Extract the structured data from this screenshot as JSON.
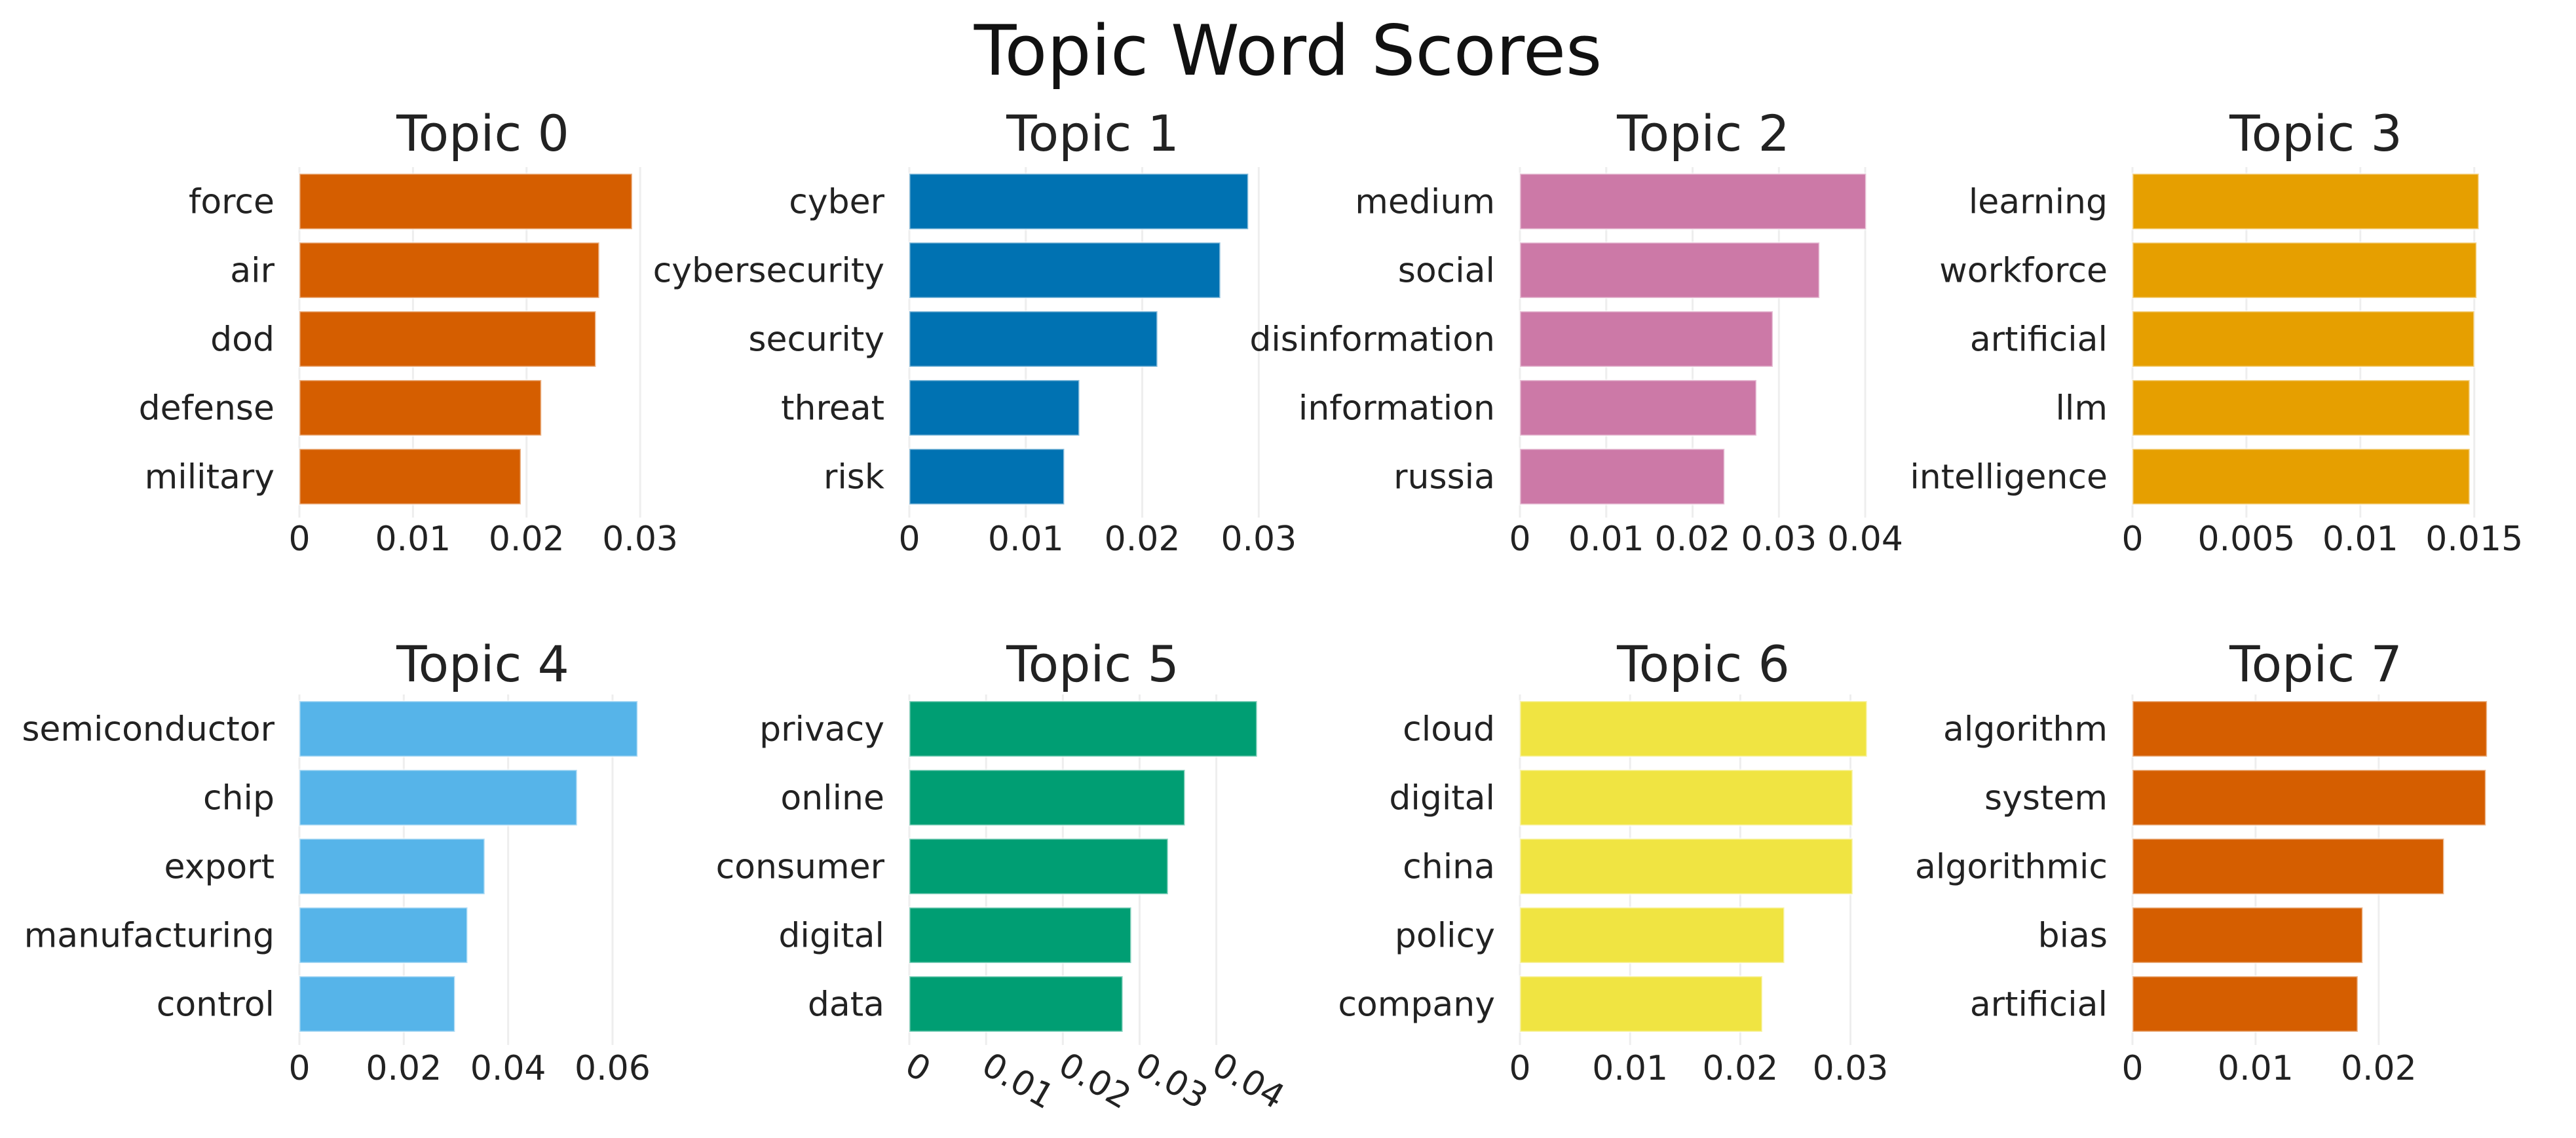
{
  "title": "Topic Word Scores",
  "chart_data": [
    {
      "type": "bar",
      "orientation": "horizontal",
      "title": "Topic 0",
      "color": "#D55E00",
      "categories": [
        "force",
        "air",
        "dod",
        "defense",
        "military"
      ],
      "values": [
        0.0293,
        0.0264,
        0.0261,
        0.0213,
        0.0195
      ],
      "xticks": [
        0,
        0.01,
        0.02,
        0.03
      ],
      "xtick_labels": [
        "0",
        "0.01",
        "0.02",
        "0.03"
      ],
      "xlim": [
        0,
        0.0323
      ]
    },
    {
      "type": "bar",
      "orientation": "horizontal",
      "title": "Topic 1",
      "color": "#0072B2",
      "categories": [
        "cyber",
        "cybersecurity",
        "security",
        "threat",
        "risk"
      ],
      "values": [
        0.0291,
        0.0267,
        0.0213,
        0.0146,
        0.0133
      ],
      "xticks": [
        0,
        0.01,
        0.02,
        0.03
      ],
      "xtick_labels": [
        "0",
        "0.01",
        "0.02",
        "0.03"
      ],
      "xlim": [
        0,
        0.0315
      ]
    },
    {
      "type": "bar",
      "orientation": "horizontal",
      "title": "Topic 2",
      "color": "#CC79A7",
      "categories": [
        "medium",
        "social",
        "disinformation",
        "information",
        "russia"
      ],
      "values": [
        0.0401,
        0.0347,
        0.0293,
        0.0274,
        0.0237
      ],
      "xticks": [
        0,
        0.01,
        0.02,
        0.03,
        0.04
      ],
      "xtick_labels": [
        "0",
        "0.01",
        "0.02",
        "0.03",
        "0.04"
      ],
      "xlim": [
        0,
        0.0425
      ]
    },
    {
      "type": "bar",
      "orientation": "horizontal",
      "title": "Topic 3",
      "color": "#E69F00",
      "categories": [
        "learning",
        "workforce",
        "artificial",
        "llm",
        "intelligence"
      ],
      "values": [
        0.0152,
        0.0151,
        0.015,
        0.0148,
        0.0148
      ],
      "xticks": [
        0,
        0.005,
        0.01,
        0.015
      ],
      "xtick_labels": [
        "0",
        "0.005",
        "0.01",
        "0.015"
      ],
      "xlim": [
        0,
        0.0161
      ]
    },
    {
      "type": "bar",
      "orientation": "horizontal",
      "title": "Topic 4",
      "color": "#56B4E9",
      "categories": [
        "semiconductor",
        "chip",
        "export",
        "manufacturing",
        "control"
      ],
      "values": [
        0.0648,
        0.0532,
        0.0355,
        0.0322,
        0.0298
      ],
      "xticks": [
        0,
        0.02,
        0.04,
        0.06
      ],
      "xtick_labels": [
        "0",
        "0.02",
        "0.04",
        "0.06"
      ],
      "xlim": [
        0,
        0.0703
      ]
    },
    {
      "type": "bar",
      "orientation": "horizontal",
      "title": "Topic 5",
      "color": "#009E73",
      "categories": [
        "privacy",
        "online",
        "consumer",
        "digital",
        "data"
      ],
      "values": [
        0.0453,
        0.0359,
        0.0337,
        0.0289,
        0.0278
      ],
      "xticks": [
        0,
        0.01,
        0.02,
        0.03,
        0.04
      ],
      "xtick_labels": [
        "0",
        "0.01",
        "0.02",
        "0.03",
        "0.04"
      ],
      "xtick_rotation": 30,
      "xlim": [
        0,
        0.0478
      ]
    },
    {
      "type": "bar",
      "orientation": "horizontal",
      "title": "Topic 6",
      "color": "#F0E442",
      "categories": [
        "cloud",
        "digital",
        "china",
        "policy",
        "company"
      ],
      "values": [
        0.0315,
        0.0302,
        0.0302,
        0.024,
        0.022
      ],
      "xticks": [
        0,
        0.01,
        0.02,
        0.03
      ],
      "xtick_labels": [
        "0",
        "0.01",
        "0.02",
        "0.03"
      ],
      "xlim": [
        0,
        0.0333
      ]
    },
    {
      "type": "bar",
      "orientation": "horizontal",
      "title": "Topic 7",
      "color": "#D55E00",
      "categories": [
        "algorithm",
        "system",
        "algorithmic",
        "bias",
        "artificial"
      ],
      "values": [
        0.0288,
        0.0287,
        0.0253,
        0.0187,
        0.0183
      ],
      "xticks": [
        0,
        0.01,
        0.02
      ],
      "xtick_labels": [
        "0",
        "0.01",
        "0.02"
      ],
      "xlim": [
        0,
        0.0298
      ]
    }
  ]
}
